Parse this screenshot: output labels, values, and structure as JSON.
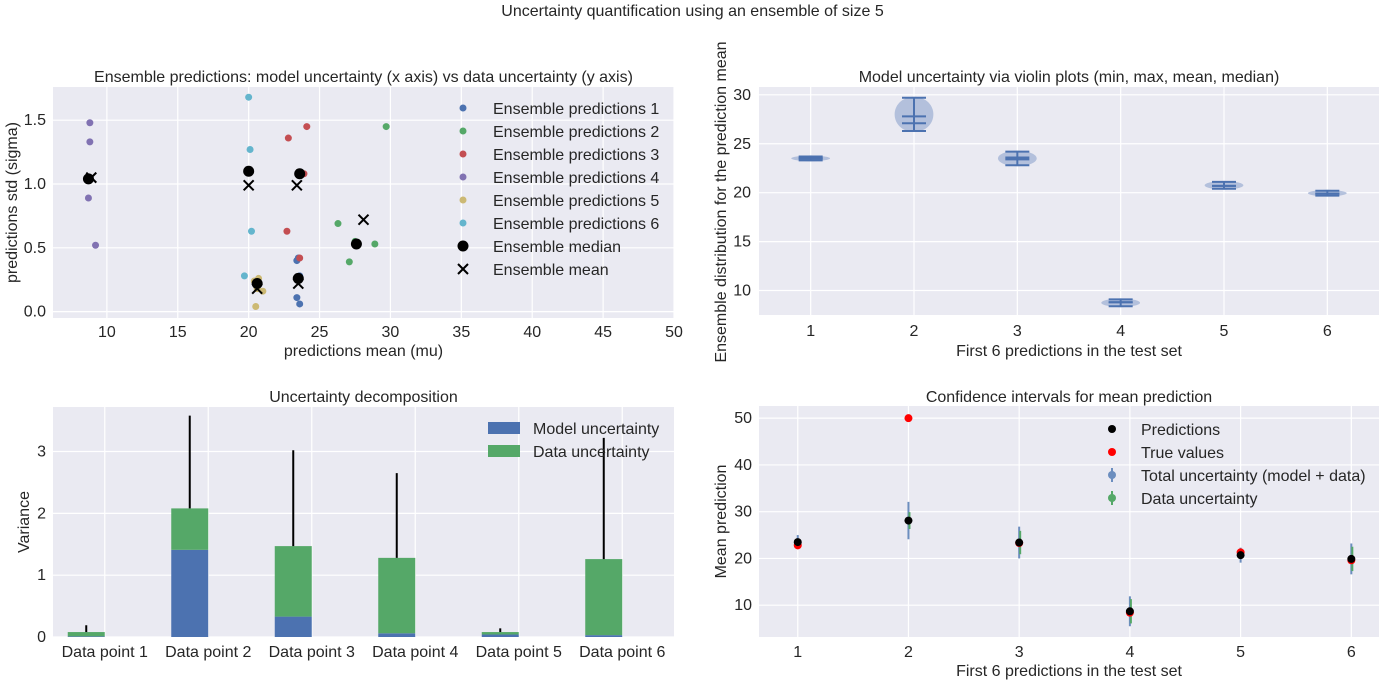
{
  "suptitle": "Uncertainty quantification using an ensemble of size 5",
  "colors": {
    "background": "#EAEAF2",
    "grid": "#FFFFFF",
    "blue": "#4C72B0",
    "green": "#55A868",
    "red": "#C44E52",
    "purple": "#8172B2",
    "yellow": "#CCB974",
    "cyan": "#64B5CD",
    "violin": "#A9B9D8"
  },
  "chart_data": [
    {
      "type": "scatter",
      "title": "Ensemble predictions: model uncertainty (x axis) vs data uncertainty (y axis)",
      "xlabel": "predictions mean (mu)",
      "ylabel": "predictions std (sigma)",
      "xlim": [
        6.2,
        50
      ],
      "ylim": [
        -0.05,
        1.76
      ],
      "xticks": [
        10,
        15,
        20,
        25,
        30,
        35,
        40,
        45,
        50
      ],
      "yticks": [
        0.0,
        0.5,
        1.0,
        1.5
      ],
      "ytick_labels": [
        "0.0",
        "0.5",
        "1.0",
        "1.5"
      ],
      "grid": true,
      "legend_position": "upper-right",
      "series": [
        {
          "name": "Ensemble predictions 1",
          "color": "#4C72B0",
          "marker": "dot",
          "points": [
            [
              23.4,
              0.11
            ],
            [
              23.6,
              0.06
            ],
            [
              23.4,
              0.4
            ],
            [
              23.5,
              0.42
            ],
            [
              23.6,
              0.28
            ]
          ]
        },
        {
          "name": "Ensemble predictions 2",
          "color": "#55A868",
          "marker": "dot",
          "points": [
            [
              26.3,
              0.69
            ],
            [
              27.1,
              0.39
            ],
            [
              28.9,
              0.53
            ],
            [
              29.7,
              1.45
            ],
            [
              27.5,
              0.55
            ]
          ]
        },
        {
          "name": "Ensemble predictions 3",
          "color": "#C44E52",
          "marker": "dot",
          "points": [
            [
              22.7,
              0.63
            ],
            [
              22.8,
              1.36
            ],
            [
              24.1,
              1.45
            ],
            [
              23.9,
              1.08
            ],
            [
              23.6,
              0.42
            ]
          ]
        },
        {
          "name": "Ensemble predictions 4",
          "color": "#8172B2",
          "marker": "dot",
          "points": [
            [
              8.8,
              1.48
            ],
            [
              8.8,
              1.33
            ],
            [
              8.7,
              0.89
            ],
            [
              9.2,
              0.52
            ],
            [
              8.7,
              1.04
            ]
          ]
        },
        {
          "name": "Ensemble predictions 5",
          "color": "#CCB974",
          "marker": "dot",
          "points": [
            [
              20.5,
              0.04
            ],
            [
              21.0,
              0.16
            ],
            [
              20.7,
              0.26
            ],
            [
              20.4,
              0.24
            ],
            [
              20.6,
              0.18
            ]
          ]
        },
        {
          "name": "Ensemble predictions 6",
          "color": "#64B5CD",
          "marker": "dot",
          "points": [
            [
              20.0,
              1.68
            ],
            [
              20.1,
              1.27
            ],
            [
              20.2,
              0.63
            ],
            [
              19.7,
              0.28
            ],
            [
              19.9,
              1.1
            ]
          ]
        },
        {
          "name": "Ensemble median",
          "color": "#000000",
          "marker": "big-dot",
          "points": [
            [
              8.7,
              1.04
            ],
            [
              20.0,
              1.1
            ],
            [
              23.6,
              1.08
            ],
            [
              27.6,
              0.53
            ],
            [
              23.5,
              0.26
            ],
            [
              20.6,
              0.22
            ]
          ]
        },
        {
          "name": "Ensemble mean",
          "color": "#000000",
          "marker": "x",
          "points": [
            [
              8.9,
              1.05
            ],
            [
              20.0,
              0.99
            ],
            [
              23.4,
              0.99
            ],
            [
              28.1,
              0.72
            ],
            [
              23.5,
              0.22
            ],
            [
              20.6,
              0.18
            ]
          ]
        }
      ]
    },
    {
      "type": "violin",
      "title": "Model uncertainty via violin plots (min, max, mean, median)",
      "xlabel": "First 6 predictions in the test set",
      "ylabel": "Ensemble distribution for the prediction mean",
      "xlim": [
        0.5,
        6.5
      ],
      "ylim": [
        7.5,
        30.8
      ],
      "xticks": [
        1,
        2,
        3,
        4,
        5,
        6
      ],
      "yticks": [
        10,
        15,
        20,
        25,
        30
      ],
      "grid": true,
      "violins": [
        {
          "x": 1,
          "min": 23.3,
          "max": 23.7,
          "mean": 23.5,
          "median": 23.5,
          "halfwidth": 0.25
        },
        {
          "x": 2,
          "min": 26.3,
          "max": 29.7,
          "mean": 27.8,
          "median": 27.1,
          "halfwidth": 0.25
        },
        {
          "x": 3,
          "min": 22.8,
          "max": 24.2,
          "mean": 23.4,
          "median": 23.6,
          "halfwidth": 0.25
        },
        {
          "x": 4,
          "min": 8.4,
          "max": 9.1,
          "mean": 8.8,
          "median": 8.8,
          "halfwidth": 0.25
        },
        {
          "x": 5,
          "min": 20.4,
          "max": 21.1,
          "mean": 20.7,
          "median": 20.7,
          "halfwidth": 0.25
        },
        {
          "x": 6,
          "min": 19.7,
          "max": 20.2,
          "mean": 19.9,
          "median": 19.9,
          "halfwidth": 0.25
        }
      ]
    },
    {
      "type": "bar",
      "stacked": true,
      "title": "Uncertainty decomposition",
      "xlabel": "",
      "ylabel": "Variance",
      "ylim": [
        0,
        3.72
      ],
      "yticks": [
        0,
        1,
        2,
        3
      ],
      "grid": true,
      "legend_position": "upper-right",
      "categories": [
        "Data point 1",
        "Data point 2",
        "Data point 3",
        "Data point 4",
        "Data point 5",
        "Data point 6"
      ],
      "series": [
        {
          "name": "Model uncertainty",
          "color": "#4C72B0",
          "values": [
            0.01,
            1.41,
            0.33,
            0.06,
            0.04,
            0.03
          ]
        },
        {
          "name": "Data uncertainty",
          "color": "#55A868",
          "values": [
            0.07,
            0.67,
            1.14,
            1.22,
            0.04,
            1.23
          ]
        }
      ],
      "error_bars_top": [
        0.19,
        3.58,
        3.02,
        2.65,
        0.14,
        3.22
      ]
    },
    {
      "type": "scatter",
      "title": "Confidence intervals for mean prediction",
      "xlabel": "First 6 predictions in the test set",
      "ylabel": "Mean prediction",
      "xlim": [
        0.65,
        6.25
      ],
      "ylim": [
        3.2,
        52.6
      ],
      "xticks": [
        1,
        2,
        3,
        4,
        5,
        6
      ],
      "yticks": [
        10,
        20,
        30,
        40,
        50
      ],
      "grid": true,
      "legend_position": "upper-right",
      "x": [
        1,
        2,
        3,
        4,
        5,
        6
      ],
      "series": [
        {
          "name": "Predictions",
          "color": "#000000",
          "values": [
            23.5,
            28.1,
            23.4,
            8.7,
            20.7,
            19.9
          ]
        },
        {
          "name": "True values",
          "color": "#FF0000",
          "values": [
            22.8,
            50.0,
            23.3,
            8.4,
            21.3,
            19.6
          ]
        },
        {
          "name": "Total uncertainty (model + data)",
          "color": "#6C8EBF",
          "values": [
            23.5,
            28.1,
            23.4,
            8.7,
            20.7,
            19.9
          ],
          "error": [
            1.5,
            4.0,
            3.4,
            3.2,
            1.6,
            3.3
          ]
        },
        {
          "name": "Data uncertainty",
          "color": "#55A868",
          "values": [
            23.5,
            28.1,
            23.4,
            8.7,
            20.7,
            19.9
          ],
          "error": [
            0.6,
            1.8,
            2.5,
            2.6,
            0.7,
            2.6
          ]
        }
      ]
    }
  ]
}
